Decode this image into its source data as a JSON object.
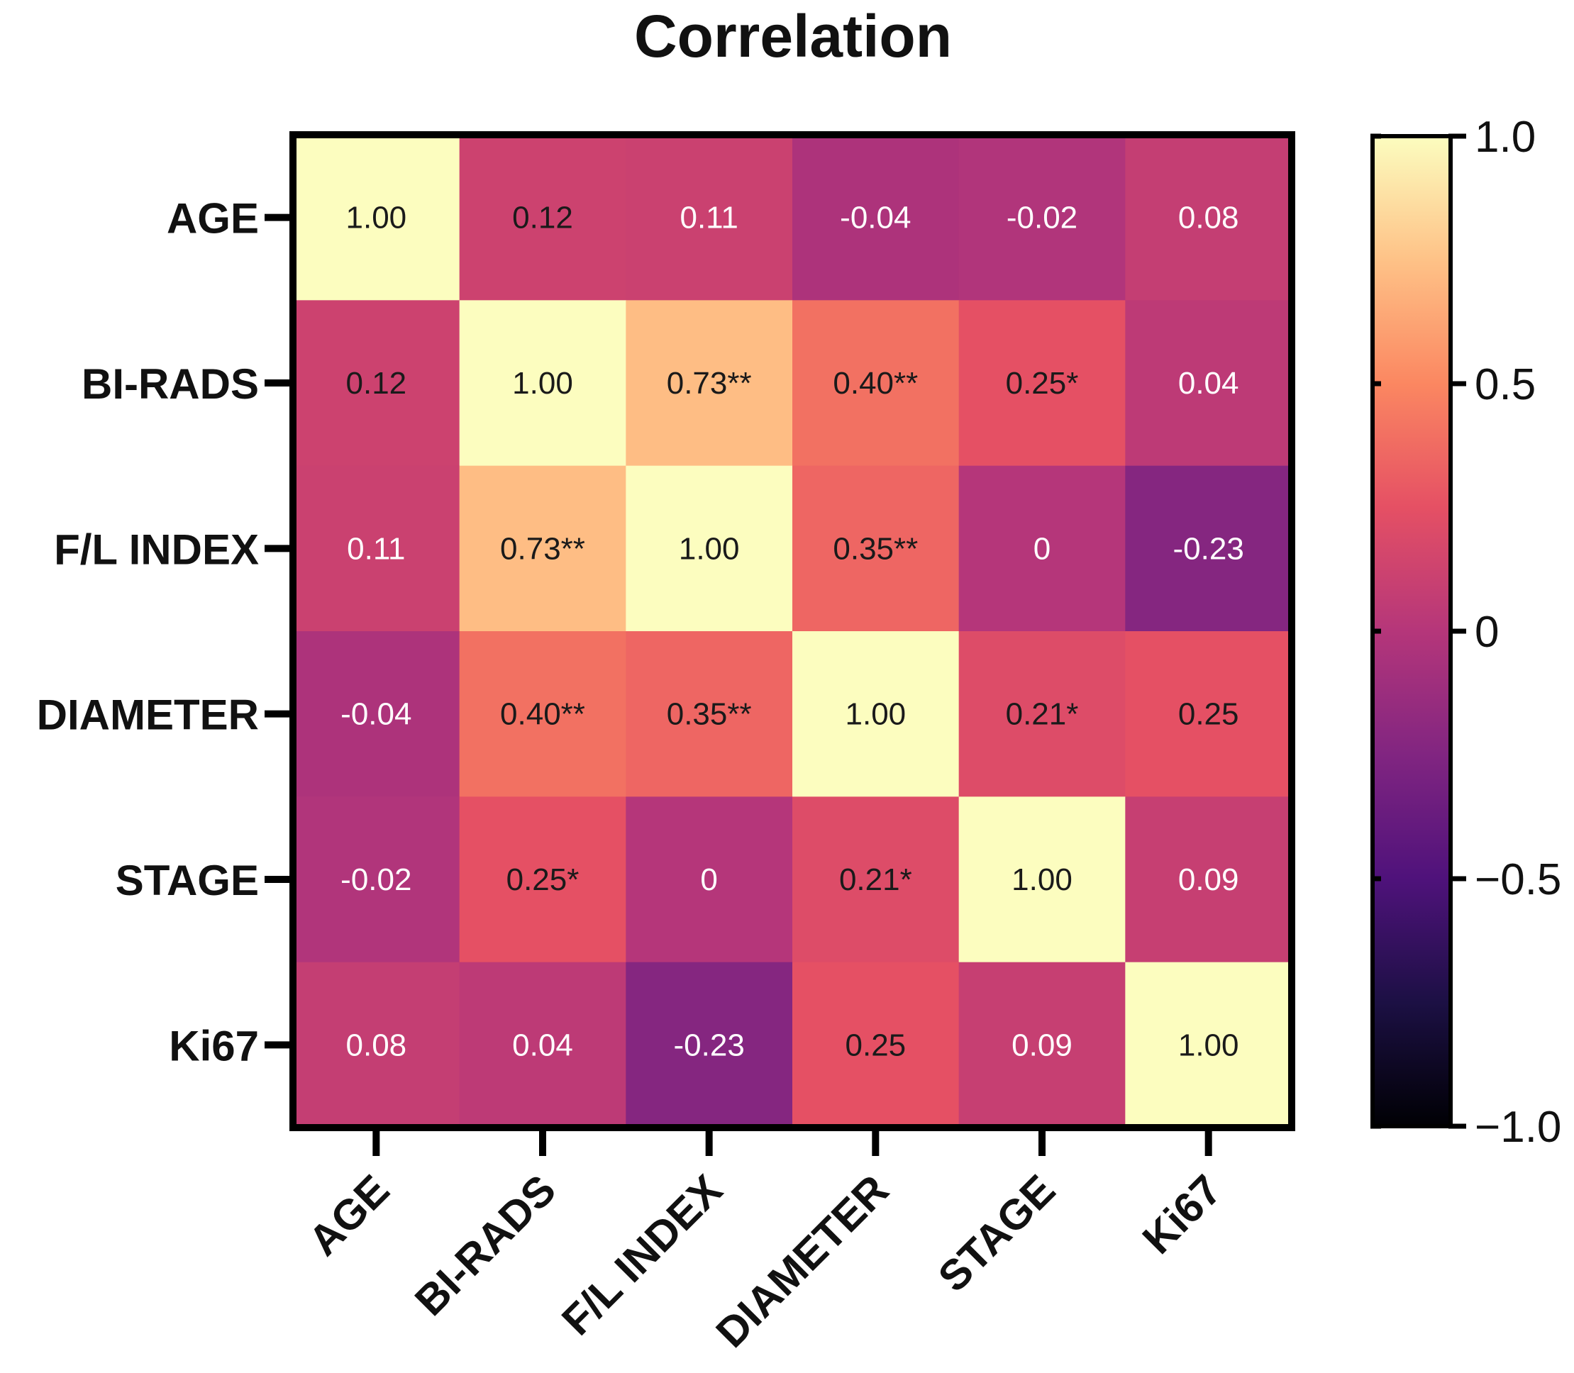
{
  "chart_data": {
    "type": "heatmap",
    "title": "Correlation",
    "rows": [
      "AGE",
      "BI-RADS",
      "F/L INDEX",
      "DIAMETER",
      "STAGE",
      "Ki67"
    ],
    "columns": [
      "AGE",
      "BI-RADS",
      "F/L INDEX",
      "DIAMETER",
      "STAGE",
      "Ki67"
    ],
    "values": [
      [
        1.0,
        0.12,
        0.11,
        -0.04,
        -0.02,
        0.08
      ],
      [
        0.12,
        1.0,
        0.73,
        0.4,
        0.25,
        0.04
      ],
      [
        0.11,
        0.73,
        1.0,
        0.35,
        0,
        -0.23
      ],
      [
        -0.04,
        0.4,
        0.35,
        1.0,
        0.21,
        0.25
      ],
      [
        -0.02,
        0.25,
        0,
        0.21,
        1.0,
        0.09
      ],
      [
        0.08,
        0.04,
        -0.23,
        0.25,
        0.09,
        1.0
      ]
    ],
    "labels": [
      [
        "1.00",
        "0.12",
        "0.11",
        "-0.04",
        "-0.02",
        "0.08"
      ],
      [
        "0.12",
        "1.00",
        "0.73**",
        "0.40**",
        "0.25*",
        "0.04"
      ],
      [
        "0.11",
        "0.73**",
        "1.00",
        "0.35**",
        "0",
        "-0.23"
      ],
      [
        "-0.04",
        "0.40**",
        "0.35**",
        "1.00",
        "0.21*",
        "0.25"
      ],
      [
        "-0.02",
        "0.25*",
        "0",
        "0.21*",
        "1.00",
        "0.09"
      ],
      [
        "0.08",
        "0.04",
        "-0.23",
        "0.25",
        "0.09",
        "1.00"
      ]
    ],
    "colorbar": {
      "range": [
        -1.0,
        1.0
      ],
      "ticks": [
        1.0,
        0.5,
        0,
        -0.5,
        -1.0
      ],
      "tick_labels": [
        "1.0",
        "0.5",
        "0",
        "−0.5",
        "−1.0"
      ],
      "colormap": "magma"
    }
  }
}
